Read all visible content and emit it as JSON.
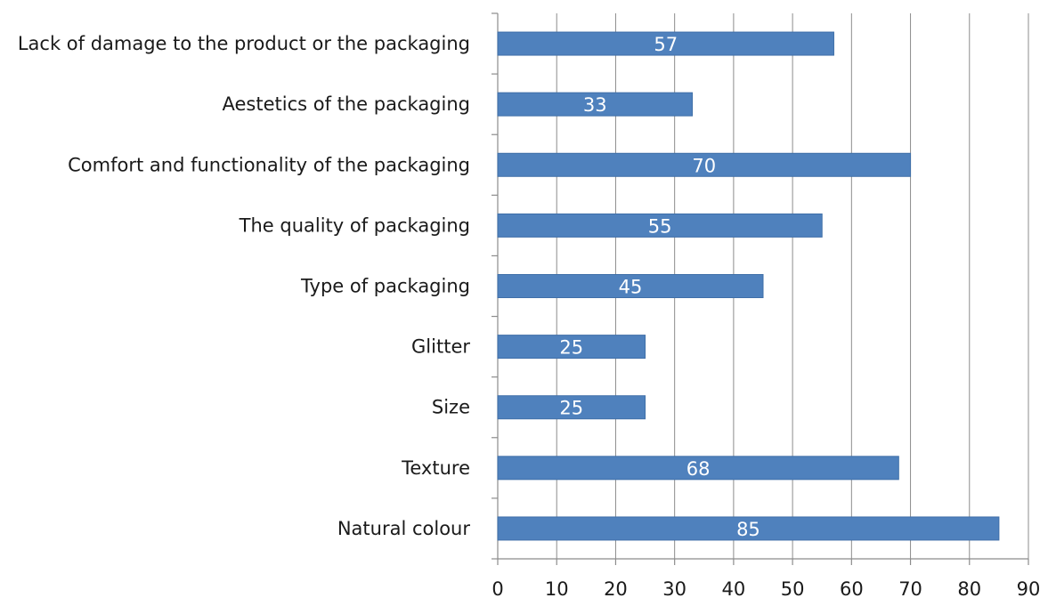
{
  "chart_data": {
    "type": "bar",
    "orientation": "horizontal",
    "categories": [
      "Lack of damage to the product or the packaging",
      "Aestetics of the packaging",
      "Comfort and functionality of the packaging",
      "The quality of packaging",
      "Type of packaging",
      "Glitter",
      "Size",
      "Texture",
      "Natural colour"
    ],
    "values": [
      57,
      33,
      70,
      55,
      45,
      25,
      25,
      68,
      85
    ],
    "data_labels": [
      "57",
      "33",
      "70",
      "55",
      "45",
      "25",
      "25",
      "68",
      "85"
    ],
    "xlim": [
      0,
      90
    ],
    "xticks": [
      "0",
      "10",
      "20",
      "30",
      "40",
      "50",
      "60",
      "70",
      "80",
      "90"
    ],
    "grid": true,
    "legend": "none",
    "colors": {
      "bar": "#4f81bd",
      "bar_edge": "#3f6fa8",
      "grid": "#8c8c8c",
      "text": "#1a1a1a",
      "data_label": "#ffffff"
    }
  }
}
